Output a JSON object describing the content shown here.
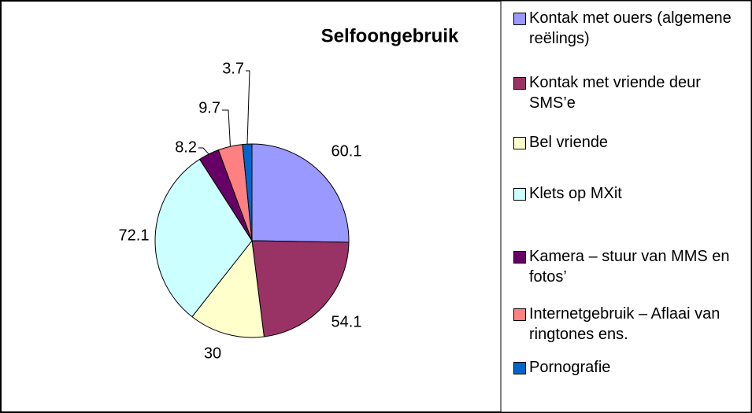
{
  "chart_data": {
    "type": "pie",
    "title": "Selfoongebruik",
    "categories": [
      "Kontak met ouers (algemene reëlings)",
      "Kontak met vriende deur SMS’e",
      "Bel vriende",
      "Klets op MXit",
      "Kamera – stuur van MMS en fotos’",
      "Internetgebruik – Aflaai van ringtones ens.",
      "Pornografie"
    ],
    "values": [
      60.1,
      54.1,
      30,
      72.1,
      8.2,
      9.7,
      3.7
    ],
    "colors": [
      "#9999ff",
      "#993366",
      "#ffffcc",
      "#ccffff",
      "#660066",
      "#ff8080",
      "#0066cc"
    ],
    "legend": "right"
  }
}
